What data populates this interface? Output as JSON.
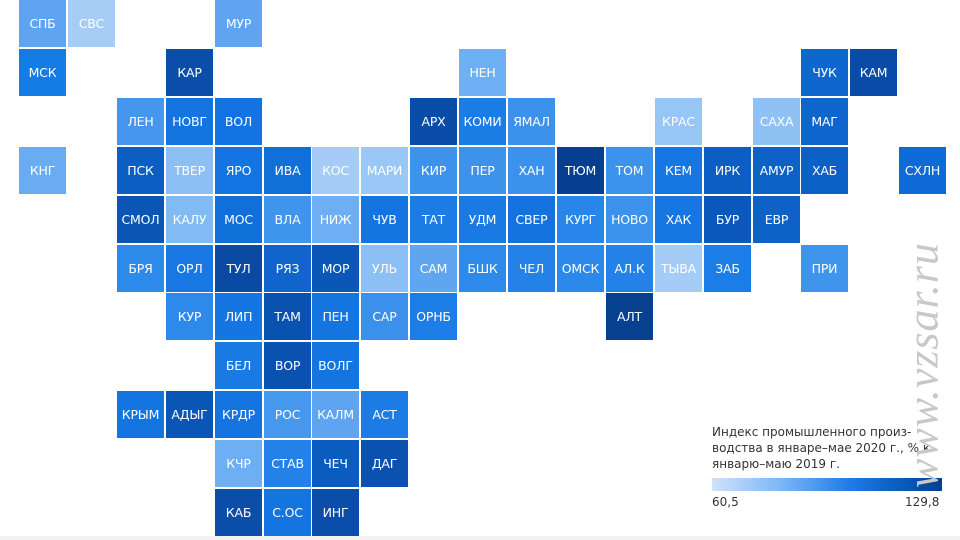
{
  "regions": [
    {
      "label": "СПБ",
      "row": 0,
      "col": 0,
      "color": "#5ea4f0"
    },
    {
      "label": "СВС",
      "row": 0,
      "col": 1,
      "color": "#a7cdf6"
    },
    {
      "label": "МУР",
      "row": 0,
      "col": 4,
      "color": "#5ea4f0"
    },
    {
      "label": "МСК",
      "row": 1,
      "col": 0,
      "color": "#137ce5"
    },
    {
      "label": "КАР",
      "row": 1,
      "col": 3,
      "color": "#0a4ea9"
    },
    {
      "label": "НЕН",
      "row": 1,
      "col": 9,
      "color": "#6db0f3"
    },
    {
      "label": "ЧУК",
      "row": 1,
      "col": 16,
      "color": "#0f66cf"
    },
    {
      "label": "КАМ",
      "row": 1,
      "col": 17,
      "color": "#094ba6"
    },
    {
      "label": "ЛЕН",
      "row": 2,
      "col": 2,
      "color": "#4596ec"
    },
    {
      "label": "НОВГ",
      "row": 2,
      "col": 3,
      "color": "#1575e0"
    },
    {
      "label": "ВОЛ",
      "row": 2,
      "col": 4,
      "color": "#1473e2"
    },
    {
      "label": "АРХ",
      "row": 2,
      "col": 8,
      "color": "#0a4da8"
    },
    {
      "label": "КОМИ",
      "row": 2,
      "col": 9,
      "color": "#1a7de6"
    },
    {
      "label": "ЯМАЛ",
      "row": 2,
      "col": 10,
      "color": "#3c91ec"
    },
    {
      "label": "КРАС",
      "row": 2,
      "col": 13,
      "color": "#96c6f6"
    },
    {
      "label": "САХА",
      "row": 2,
      "col": 15,
      "color": "#8fc1f5"
    },
    {
      "label": "МАГ",
      "row": 2,
      "col": 16,
      "color": "#0e65cd"
    },
    {
      "label": "КНГ",
      "row": 3,
      "col": 0,
      "color": "#69acf1"
    },
    {
      "label": "ПСК",
      "row": 3,
      "col": 2,
      "color": "#0c5ec2"
    },
    {
      "label": "ТВЕР",
      "row": 3,
      "col": 3,
      "color": "#8cc0f5"
    },
    {
      "label": "ЯРО",
      "row": 3,
      "col": 4,
      "color": "#1474e2"
    },
    {
      "label": "ИВА",
      "row": 3,
      "col": 5,
      "color": "#1170d8"
    },
    {
      "label": "КОС",
      "row": 3,
      "col": 6,
      "color": "#a5ccf6"
    },
    {
      "label": "МАРИ",
      "row": 3,
      "col": 7,
      "color": "#9ac8f6"
    },
    {
      "label": "КИР",
      "row": 3,
      "col": 8,
      "color": "#3d93ec"
    },
    {
      "label": "ПЕР",
      "row": 3,
      "col": 9,
      "color": "#3d93ec"
    },
    {
      "label": "ХАН",
      "row": 3,
      "col": 10,
      "color": "#3c91ec"
    },
    {
      "label": "ТЮМ",
      "row": 3,
      "col": 11,
      "color": "#063f8f"
    },
    {
      "label": "ТОМ",
      "row": 3,
      "col": 12,
      "color": "#3d93ec"
    },
    {
      "label": "КЕМ",
      "row": 3,
      "col": 13,
      "color": "#1676e2"
    },
    {
      "label": "ИРК",
      "row": 3,
      "col": 14,
      "color": "#0c5ec3"
    },
    {
      "label": "АМУР",
      "row": 3,
      "col": 15,
      "color": "#0d61c7"
    },
    {
      "label": "ХАБ",
      "row": 3,
      "col": 16,
      "color": "#0d60c5"
    },
    {
      "label": "СХЛН",
      "row": 3,
      "col": 18,
      "color": "#0e6ad6"
    },
    {
      "label": "СМОЛ",
      "row": 4,
      "col": 2,
      "color": "#0b56b5"
    },
    {
      "label": "КАЛУ",
      "row": 4,
      "col": 3,
      "color": "#81bbf4"
    },
    {
      "label": "МОС",
      "row": 4,
      "col": 4,
      "color": "#1070da"
    },
    {
      "label": "ВЛА",
      "row": 4,
      "col": 5,
      "color": "#3f94ec"
    },
    {
      "label": "НИЖ",
      "row": 4,
      "col": 6,
      "color": "#6daff2"
    },
    {
      "label": "ЧУВ",
      "row": 4,
      "col": 7,
      "color": "#1474e0"
    },
    {
      "label": "ТАТ",
      "row": 4,
      "col": 8,
      "color": "#1b7ce6"
    },
    {
      "label": "УДМ",
      "row": 4,
      "col": 9,
      "color": "#1a7ae4"
    },
    {
      "label": "СВЕР",
      "row": 4,
      "col": 10,
      "color": "#1372de"
    },
    {
      "label": "КУРГ",
      "row": 4,
      "col": 11,
      "color": "#2885e9"
    },
    {
      "label": "НОВО",
      "row": 4,
      "col": 12,
      "color": "#3d93ec"
    },
    {
      "label": "ХАК",
      "row": 4,
      "col": 13,
      "color": "#1676e2"
    },
    {
      "label": "БУР",
      "row": 4,
      "col": 14,
      "color": "#0a58bc"
    },
    {
      "label": "ЕВР",
      "row": 4,
      "col": 15,
      "color": "#0d61c7"
    },
    {
      "label": "БРЯ",
      "row": 5,
      "col": 2,
      "color": "#2d89ea"
    },
    {
      "label": "ОРЛ",
      "row": 5,
      "col": 3,
      "color": "#1877e2"
    },
    {
      "label": "ТУЛ",
      "row": 5,
      "col": 4,
      "color": "#0a4aa3"
    },
    {
      "label": "РЯЗ",
      "row": 5,
      "col": 5,
      "color": "#1064cb"
    },
    {
      "label": "МОР",
      "row": 5,
      "col": 6,
      "color": "#0b57b8"
    },
    {
      "label": "УЛЬ",
      "row": 5,
      "col": 7,
      "color": "#8cc0f5"
    },
    {
      "label": "САМ",
      "row": 5,
      "col": 8,
      "color": "#5fa5f0"
    },
    {
      "label": "БШК",
      "row": 5,
      "col": 9,
      "color": "#2e8aea"
    },
    {
      "label": "ЧЕЛ",
      "row": 5,
      "col": 10,
      "color": "#2381e8"
    },
    {
      "label": "ОМСК",
      "row": 5,
      "col": 11,
      "color": "#2c88ea"
    },
    {
      "label": "АЛ.К",
      "row": 5,
      "col": 12,
      "color": "#2381e8"
    },
    {
      "label": "ТЫВА",
      "row": 5,
      "col": 13,
      "color": "#a5ccf6"
    },
    {
      "label": "ЗАБ",
      "row": 5,
      "col": 14,
      "color": "#1d7de6"
    },
    {
      "label": "ПРИ",
      "row": 5,
      "col": 16,
      "color": "#3f94ec"
    },
    {
      "label": "КУР",
      "row": 6,
      "col": 3,
      "color": "#2d89ea"
    },
    {
      "label": "ЛИП",
      "row": 6,
      "col": 4,
      "color": "#1575e2"
    },
    {
      "label": "ТАМ",
      "row": 6,
      "col": 5,
      "color": "#0a52b0"
    },
    {
      "label": "ПЕН",
      "row": 6,
      "col": 6,
      "color": "#1474e0"
    },
    {
      "label": "САР",
      "row": 6,
      "col": 7,
      "color": "#3b90eb"
    },
    {
      "label": "ОРНБ",
      "row": 6,
      "col": 8,
      "color": "#1d7de6"
    },
    {
      "label": "АЛТ",
      "row": 6,
      "col": 12,
      "color": "#06408f"
    },
    {
      "label": "БЕЛ",
      "row": 7,
      "col": 4,
      "color": "#1a7ae4"
    },
    {
      "label": "ВОР",
      "row": 7,
      "col": 5,
      "color": "#0a52b0"
    },
    {
      "label": "ВОЛГ",
      "row": 7,
      "col": 6,
      "color": "#1474e0"
    },
    {
      "label": "КРЫМ",
      "row": 8,
      "col": 2,
      "color": "#1575e0"
    },
    {
      "label": "АДЫГ",
      "row": 8,
      "col": 3,
      "color": "#0a56b6"
    },
    {
      "label": "КРДР",
      "row": 8,
      "col": 4,
      "color": "#1474e0"
    },
    {
      "label": "РОС",
      "row": 8,
      "col": 5,
      "color": "#4598ee"
    },
    {
      "label": "КАЛМ",
      "row": 8,
      "col": 6,
      "color": "#5ea4f0"
    },
    {
      "label": "АСТ",
      "row": 8,
      "col": 7,
      "color": "#1c7be4"
    },
    {
      "label": "КЧР",
      "row": 9,
      "col": 4,
      "color": "#6daff2"
    },
    {
      "label": "СТАВ",
      "row": 9,
      "col": 5,
      "color": "#2381e8"
    },
    {
      "label": "ЧЕЧ",
      "row": 9,
      "col": 6,
      "color": "#0b5cbf"
    },
    {
      "label": "ДАГ",
      "row": 9,
      "col": 7,
      "color": "#0b52b0"
    },
    {
      "label": "КАБ",
      "row": 10,
      "col": 4,
      "color": "#0a4ea9"
    },
    {
      "label": "С.ОС",
      "row": 10,
      "col": 5,
      "color": "#1474e0"
    },
    {
      "label": "ИНГ",
      "row": 10,
      "col": 6,
      "color": "#0a4ea9"
    }
  ],
  "legend": {
    "title": "Индекс промышленного произ-водства в январе–мае 2020 г., % к январю–маю 2019 г.",
    "min_label": "60,5",
    "max_label": "129,8"
  },
  "watermark": "www.vzsar.ru"
}
